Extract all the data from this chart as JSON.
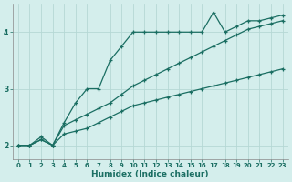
{
  "xlabel": "Humidex (Indice chaleur)",
  "bg_color": "#d4eeec",
  "grid_color": "#b5d8d5",
  "line_color": "#1a6e62",
  "xlim": [
    -0.5,
    23.5
  ],
  "ylim": [
    1.75,
    4.5
  ],
  "yticks": [
    2,
    3,
    4
  ],
  "xticks": [
    0,
    1,
    2,
    3,
    4,
    5,
    6,
    7,
    8,
    9,
    10,
    11,
    12,
    13,
    14,
    15,
    16,
    17,
    18,
    19,
    20,
    21,
    22,
    23
  ],
  "line1_x": [
    0,
    1,
    2,
    3,
    4,
    5,
    6,
    7,
    8,
    9,
    10,
    11,
    12,
    13,
    14,
    15,
    16,
    17,
    18,
    19,
    20,
    21,
    22,
    23
  ],
  "line1_y": [
    2.0,
    2.0,
    2.15,
    2.0,
    2.4,
    2.75,
    3.0,
    3.0,
    3.5,
    3.75,
    4.0,
    4.0,
    4.0,
    4.0,
    4.0,
    4.0,
    4.0,
    4.35,
    4.0,
    4.1,
    4.2,
    4.2,
    4.25,
    4.3
  ],
  "line2_x": [
    0,
    1,
    2,
    3,
    4,
    5,
    6,
    7,
    8,
    9,
    10,
    11,
    12,
    13,
    14,
    15,
    16,
    17,
    18,
    19,
    20,
    21,
    22,
    23
  ],
  "line2_y": [
    2.0,
    2.0,
    2.1,
    2.0,
    2.35,
    2.45,
    2.55,
    2.65,
    2.75,
    2.9,
    3.05,
    3.15,
    3.25,
    3.35,
    3.45,
    3.55,
    3.65,
    3.75,
    3.85,
    3.95,
    4.05,
    4.1,
    4.15,
    4.2
  ],
  "line3_x": [
    0,
    1,
    2,
    3,
    4,
    5,
    6,
    7,
    8,
    9,
    10,
    11,
    12,
    13,
    14,
    15,
    16,
    17,
    18,
    19,
    20,
    21,
    22,
    23
  ],
  "line3_y": [
    2.0,
    2.0,
    2.1,
    2.0,
    2.2,
    2.25,
    2.3,
    2.4,
    2.5,
    2.6,
    2.7,
    2.75,
    2.8,
    2.85,
    2.9,
    2.95,
    3.0,
    3.05,
    3.1,
    3.15,
    3.2,
    3.25,
    3.3,
    3.35
  ]
}
